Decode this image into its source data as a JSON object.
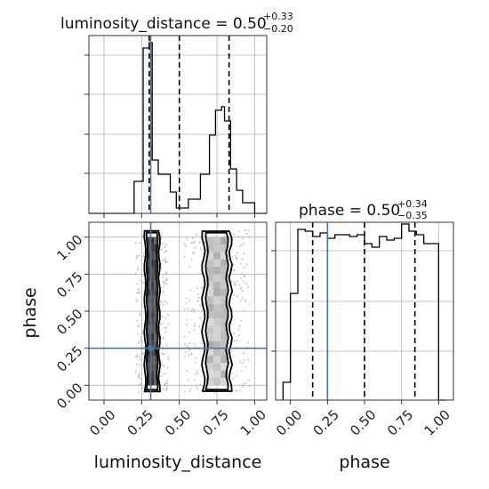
{
  "chart_data": {
    "type": "corner",
    "parameters": [
      "luminosity_distance",
      "phase"
    ],
    "truths": {
      "luminosity_distance": 0.31,
      "phase": 0.25
    },
    "panels": [
      {
        "id": "luminosity_distance_marginal",
        "type": "histogram",
        "title": {
          "main": "luminosity_distance = 0.50",
          "upper": "+0.33",
          "lower": "−0.20"
        },
        "xlim": [
          -0.1,
          1.08
        ],
        "ylim": [
          0,
          1.0
        ],
        "bin_edges": [
          -0.1,
          0.08,
          0.2,
          0.24,
          0.26,
          0.28,
          0.3,
          0.32,
          0.36,
          0.4,
          0.44,
          0.48,
          0.52,
          0.56,
          0.6,
          0.64,
          0.68,
          0.7,
          0.72,
          0.74,
          0.76,
          0.78,
          0.8,
          0.82,
          0.84,
          0.88,
          0.92,
          0.96,
          1.0,
          1.08
        ],
        "counts": [
          0.0,
          0.0,
          0.18,
          0.18,
          0.93,
          0.93,
          0.96,
          0.3,
          0.22,
          0.22,
          0.12,
          0.03,
          0.03,
          0.08,
          0.08,
          0.22,
          0.22,
          0.44,
          0.44,
          0.58,
          0.58,
          0.6,
          0.52,
          0.52,
          0.25,
          0.13,
          0.06,
          0.06,
          0.0
        ],
        "quantile_lines": [
          0.3,
          0.5,
          0.83
        ],
        "truth": 0.31
      },
      {
        "id": "phase_marginal",
        "type": "histogram",
        "title": {
          "main": "phase = 0.50",
          "upper": "+0.34",
          "lower": "−0.35"
        },
        "xlim": [
          -0.1,
          1.1
        ],
        "ylim": [
          0,
          1.0
        ],
        "bin_edges": [
          -0.05,
          0.0,
          0.05,
          0.1,
          0.15,
          0.2,
          0.25,
          0.3,
          0.35,
          0.4,
          0.45,
          0.5,
          0.55,
          0.6,
          0.65,
          0.7,
          0.75,
          0.8,
          0.85,
          0.9,
          0.95,
          1.0,
          1.05
        ],
        "counts": [
          0.1,
          0.6,
          0.96,
          0.95,
          0.92,
          0.94,
          0.91,
          0.93,
          0.93,
          0.92,
          0.93,
          0.88,
          0.86,
          0.92,
          0.9,
          0.91,
          0.99,
          0.95,
          0.93,
          0.88,
          0.88,
          0.0
        ],
        "quantile_lines": [
          0.15,
          0.5,
          0.84
        ],
        "truth": 0.25
      },
      {
        "id": "joint_luminosity_distance_phase",
        "type": "2d_density",
        "xlim": [
          -0.1,
          1.08
        ],
        "ylim": [
          -0.1,
          1.1
        ],
        "truth": {
          "x": 0.31,
          "y": 0.25
        },
        "modes": [
          {
            "x_center": 0.32,
            "x_width": 0.09,
            "y_range": [
              0.0,
              1.0
            ],
            "density": "high"
          },
          {
            "x_center": 0.75,
            "x_width": 0.18,
            "y_range": [
              0.0,
              1.0
            ],
            "density": "low"
          }
        ]
      }
    ],
    "x_ticks": [
      0.0,
      0.25,
      0.5,
      0.75,
      1.0
    ],
    "y_ticks": [
      0.0,
      0.25,
      0.5,
      0.75,
      1.0
    ],
    "tick_labels": [
      "0.00",
      "0.25",
      "0.50",
      "0.75",
      "1.00"
    ],
    "xlabels": [
      "luminosity_distance",
      "phase"
    ],
    "ylabel": "phase",
    "grid": true,
    "colors": {
      "line": "#000000",
      "truth": "#4477aa",
      "grid": "#b0b0b0",
      "points": "#b8b8b8"
    }
  }
}
